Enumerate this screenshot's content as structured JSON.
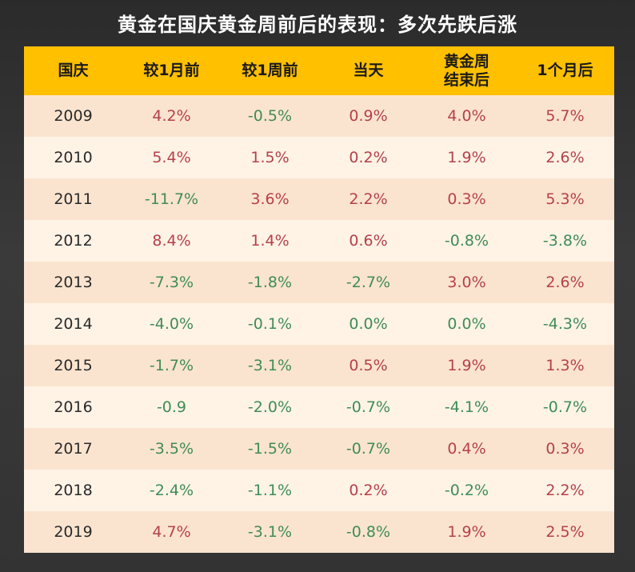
{
  "title": "黄金在国庆黄金周前后的表现：多次先跌后涨",
  "chart_data": {
    "type": "table",
    "title": "黄金在国庆黄金周前后的表现：多次先跌后涨",
    "columns": [
      "国庆",
      "较1月前",
      "较1周前",
      "当天",
      "黄金周\n结束后",
      "1个月后"
    ],
    "rows": [
      {
        "year": "2009",
        "values": [
          "4.2%",
          "-0.5%",
          "0.9%",
          "4.0%",
          "5.7%"
        ]
      },
      {
        "year": "2010",
        "values": [
          "5.4%",
          "1.5%",
          "0.2%",
          "1.9%",
          "2.6%"
        ]
      },
      {
        "year": "2011",
        "values": [
          "-11.7%",
          "3.6%",
          "2.2%",
          "0.3%",
          "5.3%"
        ]
      },
      {
        "year": "2012",
        "values": [
          "8.4%",
          "1.4%",
          "0.6%",
          "-0.8%",
          "-3.8%"
        ]
      },
      {
        "year": "2013",
        "values": [
          "-7.3%",
          "-1.8%",
          "-2.7%",
          "3.0%",
          "2.6%"
        ]
      },
      {
        "year": "2014",
        "values": [
          "-4.0%",
          "-0.1%",
          "0.0%",
          "0.0%",
          "-4.3%"
        ]
      },
      {
        "year": "2015",
        "values": [
          "-1.7%",
          "-3.1%",
          "0.5%",
          "1.9%",
          "1.3%"
        ]
      },
      {
        "year": "2016",
        "values": [
          "-0.9",
          "-2.0%",
          "-0.7%",
          "-4.1%",
          "-0.7%"
        ]
      },
      {
        "year": "2017",
        "values": [
          "-3.5%",
          "-1.5%",
          "-0.7%",
          "0.4%",
          "0.3%"
        ]
      },
      {
        "year": "2018",
        "values": [
          "-2.4%",
          "-1.1%",
          "0.2%",
          "-0.2%",
          "2.2%"
        ]
      },
      {
        "year": "2019",
        "values": [
          "4.7%",
          "-3.1%",
          "-0.8%",
          "1.9%",
          "2.5%"
        ]
      }
    ],
    "colors": {
      "header_bg": "#ffc000",
      "row_odd_bg": "#fbe4cf",
      "row_even_bg": "#fff3e6",
      "positive": "#b5414a",
      "negative": "#3f8c57"
    }
  }
}
